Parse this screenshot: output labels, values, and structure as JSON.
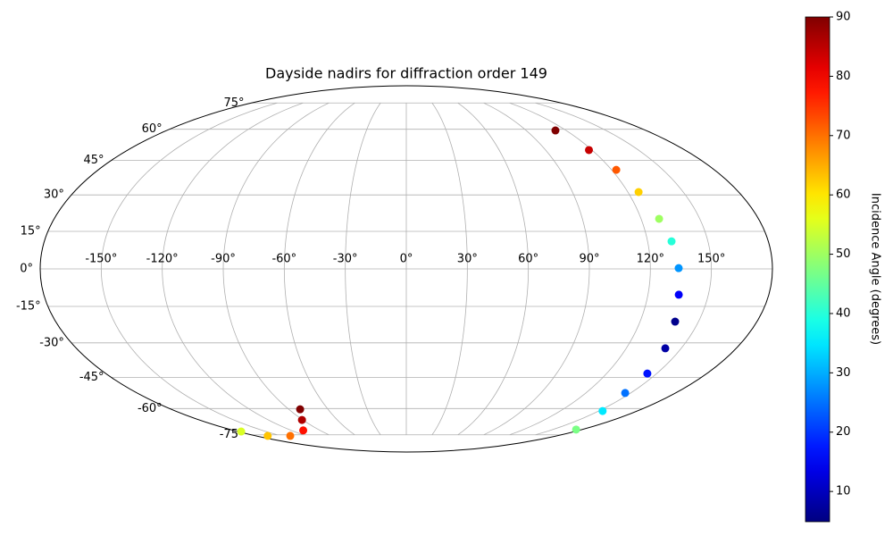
{
  "chart_data": {
    "type": "scatter",
    "projection": "mollweide",
    "title": "Dayside nadirs for diffraction order 149",
    "x": [
      112,
      118,
      122.7,
      125.8,
      129.2,
      131.9,
      133.9,
      135.3,
      138,
      141.3,
      144.4,
      146.3,
      153,
      174,
      -81.3,
      -90.7,
      -107.5,
      -139,
      -166,
      -176.6
    ],
    "y": [
      59.4,
      49.8,
      40.8,
      31.2,
      20.1,
      11.0,
      0.3,
      -10.3,
      -21.2,
      -32.3,
      -43.3,
      -52.3,
      -61.3,
      -71.7,
      -60.4,
      -66.1,
      -72.2,
      -75.7,
      -75.7,
      -72.9
    ],
    "color_values": [
      90,
      84,
      72,
      62,
      50,
      40,
      28,
      15,
      6,
      8,
      17,
      25,
      35,
      47,
      90,
      86,
      78,
      70,
      63,
      55
    ],
    "colormap": "jet",
    "grid": true,
    "xticks": [
      {
        "value": -150,
        "label": "-150°"
      },
      {
        "value": -120,
        "label": "-120°"
      },
      {
        "value": -90,
        "label": "-90°"
      },
      {
        "value": -60,
        "label": "-60°"
      },
      {
        "value": -30,
        "label": "-30°"
      },
      {
        "value": 0,
        "label": "0°"
      },
      {
        "value": 30,
        "label": "30°"
      },
      {
        "value": 60,
        "label": "60°"
      },
      {
        "value": 90,
        "label": "90°"
      },
      {
        "value": 120,
        "label": "120°"
      },
      {
        "value": 150,
        "label": "150°"
      }
    ],
    "yticks": [
      {
        "value": -75,
        "label": "-75°"
      },
      {
        "value": -60,
        "label": "-60°"
      },
      {
        "value": -45,
        "label": "-45°"
      },
      {
        "value": -30,
        "label": "-30°"
      },
      {
        "value": -15,
        "label": "-15°"
      },
      {
        "value": 0,
        "label": "0°"
      },
      {
        "value": 15,
        "label": "15°"
      },
      {
        "value": 30,
        "label": "30°"
      },
      {
        "value": 45,
        "label": "45°"
      },
      {
        "value": 60,
        "label": "60°"
      },
      {
        "value": 75,
        "label": "75°"
      }
    ],
    "colorbar": {
      "label": "Incidence Angle (degrees)",
      "lim": [
        4.9,
        90
      ],
      "ticks": [
        10,
        20,
        30,
        40,
        50,
        60,
        70,
        80,
        90
      ]
    }
  }
}
